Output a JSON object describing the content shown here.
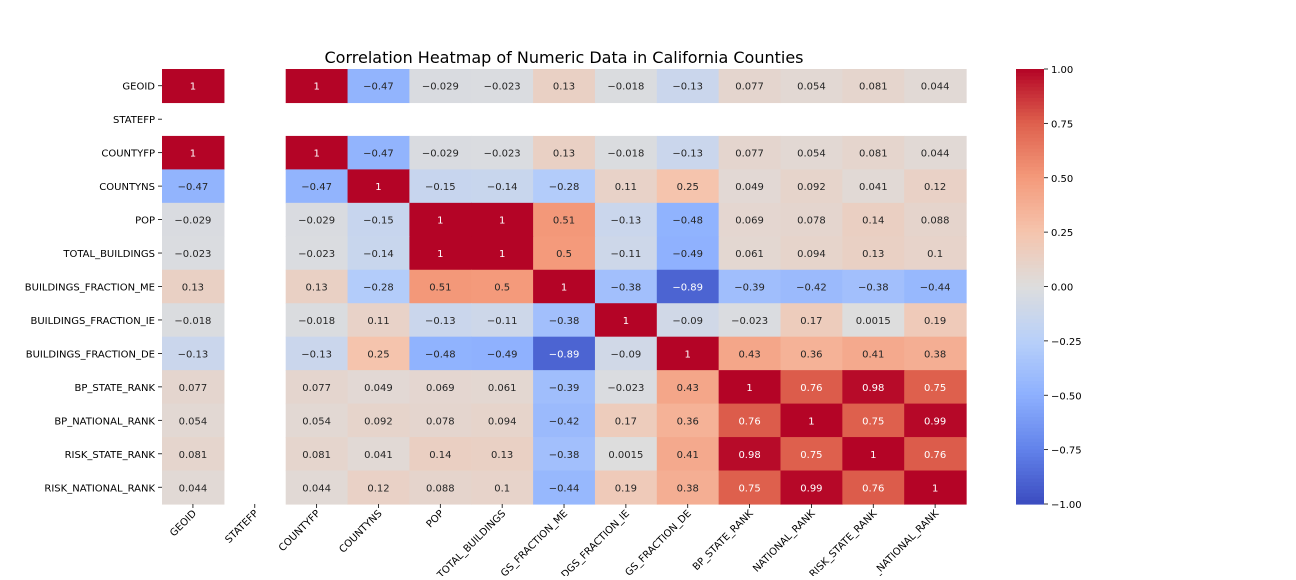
{
  "chart_data": {
    "type": "heatmap",
    "title": "Correlation Heatmap of Numeric Data in California Counties",
    "xlabel": "",
    "ylabel": "",
    "colormap": "coolwarm",
    "vmin": -1,
    "vmax": 1,
    "colorbar_ticks": [
      "1.00",
      "0.75",
      "0.50",
      "0.25",
      "0.00",
      "−0.25",
      "−0.50",
      "−0.75",
      "−1.00"
    ],
    "labels": [
      "GEOID",
      "STATEFP",
      "COUNTYFP",
      "COUNTYNS",
      "POP",
      "TOTAL_BUILDINGS",
      "BUILDINGS_FRACTION_ME",
      "BUILDINGS_FRACTION_IE",
      "BUILDINGS_FRACTION_DE",
      "BP_STATE_RANK",
      "BP_NATIONAL_RANK",
      "RISK_STATE_RANK",
      "RISK_NATIONAL_RANK"
    ],
    "x_tick_labels": [
      "GEOID",
      "STATEFP",
      "COUNTYFP",
      "COUNTYNS",
      "POP",
      "TOTAL_BUILDINGS",
      "GS_FRACTION_ME",
      "DGS_FRACTION_IE",
      "GS_FRACTION_DE",
      "BP_STATE_RANK",
      "NATIONAL_RANK",
      "RISK_STATE_RANK",
      "_NATIONAL_RANK"
    ],
    "values": [
      [
        1,
        null,
        1,
        -0.47,
        -0.029,
        -0.023,
        0.13,
        -0.018,
        -0.13,
        0.077,
        0.054,
        0.081,
        0.044
      ],
      [
        null,
        null,
        null,
        null,
        null,
        null,
        null,
        null,
        null,
        null,
        null,
        null,
        null
      ],
      [
        1,
        null,
        1,
        -0.47,
        -0.029,
        -0.023,
        0.13,
        -0.018,
        -0.13,
        0.077,
        0.054,
        0.081,
        0.044
      ],
      [
        -0.47,
        null,
        -0.47,
        1,
        -0.15,
        -0.14,
        -0.28,
        0.11,
        0.25,
        0.049,
        0.092,
        0.041,
        0.12
      ],
      [
        -0.029,
        null,
        -0.029,
        -0.15,
        1,
        1,
        0.51,
        -0.13,
        -0.48,
        0.069,
        0.078,
        0.14,
        0.088
      ],
      [
        -0.023,
        null,
        -0.023,
        -0.14,
        1,
        1,
        0.5,
        -0.11,
        -0.49,
        0.061,
        0.094,
        0.13,
        0.1
      ],
      [
        0.13,
        null,
        0.13,
        -0.28,
        0.51,
        0.5,
        1,
        -0.38,
        -0.89,
        -0.39,
        -0.42,
        -0.38,
        -0.44
      ],
      [
        -0.018,
        null,
        -0.018,
        0.11,
        -0.13,
        -0.11,
        -0.38,
        1,
        -0.09,
        -0.023,
        0.17,
        0.0015,
        0.19
      ],
      [
        -0.13,
        null,
        -0.13,
        0.25,
        -0.48,
        -0.49,
        -0.89,
        -0.09,
        1,
        0.43,
        0.36,
        0.41,
        0.38
      ],
      [
        0.077,
        null,
        0.077,
        0.049,
        0.069,
        0.061,
        -0.39,
        -0.023,
        0.43,
        1,
        0.76,
        0.98,
        0.75
      ],
      [
        0.054,
        null,
        0.054,
        0.092,
        0.078,
        0.094,
        -0.42,
        0.17,
        0.36,
        0.76,
        1,
        0.75,
        0.99
      ],
      [
        0.081,
        null,
        0.081,
        0.041,
        0.14,
        0.13,
        -0.38,
        0.0015,
        0.41,
        0.98,
        0.75,
        1,
        0.76
      ],
      [
        0.044,
        null,
        0.044,
        0.12,
        0.088,
        0.1,
        -0.44,
        0.19,
        0.38,
        0.75,
        0.99,
        0.76,
        1
      ]
    ]
  }
}
